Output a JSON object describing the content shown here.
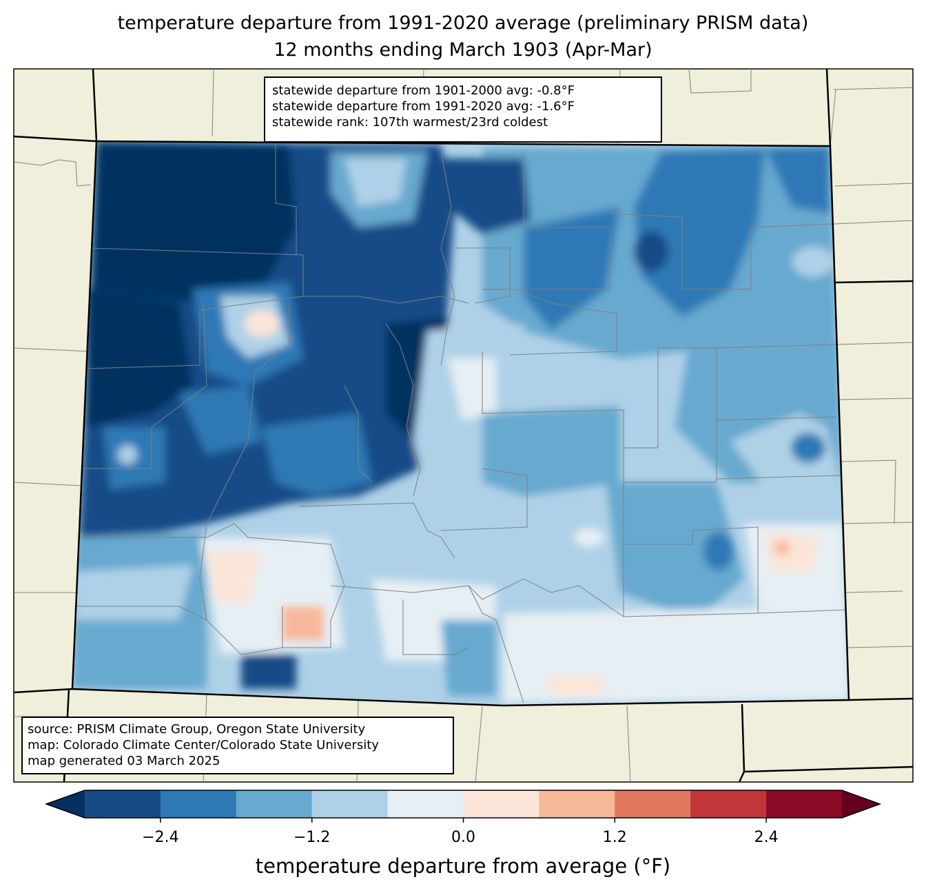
{
  "title": {
    "line1": "temperature departure from 1991-2020 average (preliminary PRISM data)",
    "line2": "12 months ending March 1903 (Apr-Mar)"
  },
  "stats": {
    "line1": "statewide departure from 1901-2000 avg: -0.8°F",
    "line2": "statewide departure from 1991-2020 avg: -1.6°F",
    "line3": "statewide rank: 107th warmest/23rd coldest"
  },
  "credits": {
    "line1": "source: PRISM Climate Group, Oregon State University",
    "line2": "map: Colorado Climate Center/Colorado State University",
    "line3": "map generated 03 March 2025"
  },
  "colorbar": {
    "label": "temperature departure from average (°F)",
    "ticks": [
      "−2.4",
      "−1.2",
      "0.0",
      "1.2",
      "2.4"
    ],
    "tick_values": [
      -2.4,
      -1.2,
      0.0,
      1.2,
      2.4
    ],
    "range": [
      -3.0,
      3.0
    ],
    "step": 0.6,
    "colors_under": "#053061",
    "colors_over": "#67001f",
    "bins": [
      "#154b87",
      "#2f79b5",
      "#67a9cf",
      "#afd1e7",
      "#e6eff4",
      "#fbe5d8",
      "#f7b799",
      "#e17860",
      "#c13639",
      "#8a0b25"
    ]
  },
  "map_colors": {
    "land": "#efefdb",
    "state_border": "#000000",
    "county_border": "#808080"
  }
}
